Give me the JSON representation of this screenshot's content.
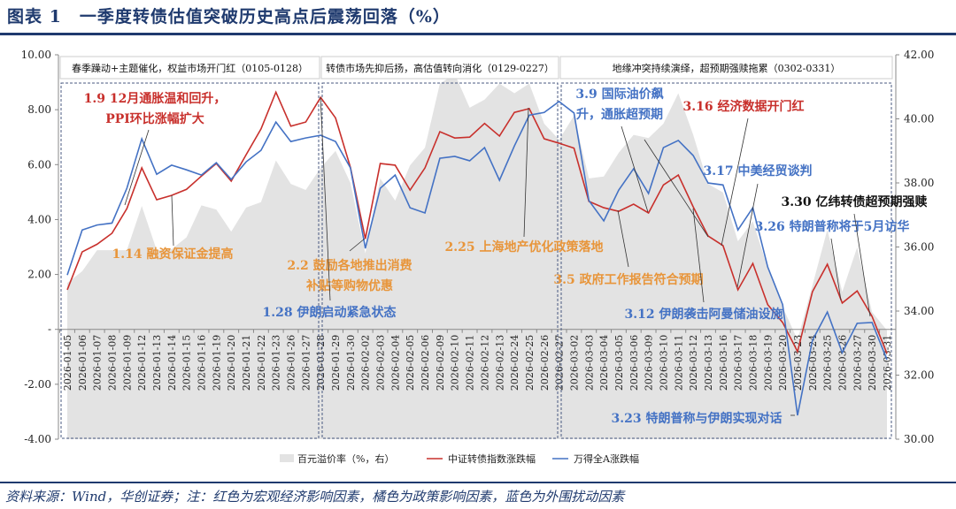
{
  "title": "图表 1　一季度转债估值突破历史高点后震荡回落（%）",
  "footer": "资料来源：Wind，华创证券；注：红色为宏观经济影响因素，橘色为政策影响因素，蓝色为外围扰动因素",
  "colors": {
    "red": "#c8302c",
    "blue": "#4472c4",
    "orange": "#e8953a",
    "area": "#e3e3e3",
    "navy": "#1f3a6e",
    "black": "#111111"
  },
  "chart_data": {
    "type": "line",
    "x": [
      "2026-01-05",
      "2026-01-06",
      "2026-01-07",
      "2026-01-08",
      "2026-01-09",
      "2026-01-12",
      "2026-01-13",
      "2026-01-14",
      "2026-01-15",
      "2026-01-16",
      "2026-01-19",
      "2026-01-20",
      "2026-01-21",
      "2026-01-22",
      "2026-01-23",
      "2026-01-26",
      "2026-01-27",
      "2026-01-28",
      "2026-01-29",
      "2026-01-30",
      "2026-02-02",
      "2026-02-03",
      "2026-02-04",
      "2026-02-05",
      "2026-02-06",
      "2026-02-09",
      "2026-02-10",
      "2026-02-11",
      "2026-02-12",
      "2026-02-13",
      "2026-02-24",
      "2026-02-25",
      "2026-02-26",
      "2026-02-27",
      "2026-03-02",
      "2026-03-03",
      "2026-03-04",
      "2026-03-05",
      "2026-03-06",
      "2026-03-09",
      "2026-03-10",
      "2026-03-11",
      "2026-03-12",
      "2026-03-13",
      "2026-03-16",
      "2026-03-17",
      "2026-03-18",
      "2026-03-19",
      "2026-03-20",
      "2026-03-23",
      "2026-03-24",
      "2026-03-25",
      "2026-03-26",
      "2026-03-27",
      "2026-03-30",
      "2026-03-31"
    ],
    "ylim_left": [
      -4,
      10
    ],
    "yticks_left": [
      "10.00",
      "8.00",
      "6.00",
      "4.00",
      "2.00",
      "-",
      "-2.00",
      "-4.00"
    ],
    "ylim_right": [
      30,
      42
    ],
    "yticks_right": [
      "42.00",
      "40.00",
      "38.00",
      "36.00",
      "34.00",
      "32.00",
      "30.00"
    ],
    "legend_position": "bottom",
    "series": [
      {
        "name": "百元溢价率（%，右）",
        "type": "area",
        "axis": "right",
        "color": "#e3e3e3",
        "values": [
          34.88,
          35.24,
          35.9,
          35.9,
          35.9,
          37.28,
          35.9,
          35.93,
          36.3,
          37.3,
          37.17,
          36.48,
          37.23,
          37.4,
          38.7,
          37.97,
          37.78,
          38.47,
          39.0,
          38.0,
          35.8,
          38.14,
          37.45,
          38.55,
          39.1,
          41.1,
          41.4,
          40.35,
          40.6,
          41.1,
          40.8,
          41.1,
          39.85,
          39.35,
          40.1,
          38.14,
          38.2,
          38.94,
          39.5,
          39.4,
          39.85,
          40.8,
          39.5,
          37.97,
          37.7,
          36.18,
          36.8,
          35.35,
          34.13,
          33.1,
          34.8,
          36.54,
          34.6,
          35.99,
          33.97,
          33.4
        ]
      },
      {
        "name": "中证转债指数涨跌幅",
        "type": "line",
        "axis": "left",
        "color": "#c8302c",
        "values": [
          1.44,
          2.82,
          3.1,
          3.5,
          4.4,
          5.88,
          4.72,
          4.88,
          5.1,
          5.58,
          6.04,
          5.4,
          6.36,
          7.3,
          8.64,
          7.4,
          7.55,
          8.45,
          7.7,
          5.9,
          3.3,
          6.04,
          5.98,
          5.07,
          5.88,
          7.2,
          6.97,
          7.0,
          7.5,
          7.04,
          7.9,
          8.04,
          6.94,
          6.78,
          6.6,
          4.66,
          4.43,
          4.3,
          4.56,
          4.24,
          5.26,
          5.62,
          4.46,
          3.4,
          3.05,
          1.44,
          2.4,
          0.9,
          0.25,
          -0.81,
          1.37,
          2.37,
          0.96,
          1.4,
          0.47,
          -0.88
        ]
      },
      {
        "name": "万得全A涨跌幅",
        "type": "line",
        "axis": "left",
        "color": "#4472c4",
        "values": [
          1.98,
          3.62,
          3.8,
          3.87,
          5.14,
          6.94,
          5.65,
          5.98,
          5.81,
          5.62,
          6.07,
          5.46,
          6.1,
          6.52,
          7.55,
          6.84,
          6.97,
          7.07,
          6.84,
          5.88,
          2.95,
          5.14,
          5.62,
          4.43,
          4.24,
          6.23,
          6.3,
          6.14,
          6.62,
          5.43,
          6.68,
          7.8,
          7.9,
          8.3,
          7.88,
          4.69,
          3.95,
          5.07,
          5.85,
          4.95,
          6.62,
          6.88,
          6.33,
          5.33,
          5.26,
          3.62,
          4.43,
          2.27,
          0.9,
          -3.13,
          -0.4,
          0.63,
          -0.85,
          0.22,
          0.25,
          -1.1
        ]
      }
    ],
    "phases": [
      {
        "label": "春季躁动+主题催化，权益市场开门红（0105-0128）"
      },
      {
        "label": "转债市场先抑后扬，高估值转向消化（0129-0227）"
      },
      {
        "label": "地缘冲突持续演绎，超预期强赎拖累（0302-0331）"
      }
    ],
    "annotations": [
      {
        "lines": [
          "1.9 12月通胀温和回升，",
          "PPI环比涨幅扩大"
        ],
        "color": "red"
      },
      {
        "lines": [
          "1.14 融资保证金提高"
        ],
        "color": "orange"
      },
      {
        "lines": [
          "2.2 鼓励各地推出消费",
          "补贴等购物优惠"
        ],
        "color": "orange"
      },
      {
        "lines": [
          "1.28 伊朗启动紧急状态"
        ],
        "color": "blue"
      },
      {
        "lines": [
          "2.25 上海地产优化政策落地"
        ],
        "color": "orange"
      },
      {
        "lines": [
          "3.9 国际油价飙",
          "升，通胀超预期"
        ],
        "color": "blue"
      },
      {
        "lines": [
          "3.5 政府工作报告符合预期"
        ],
        "color": "orange"
      },
      {
        "lines": [
          "3.16 经济数据开门红"
        ],
        "color": "red"
      },
      {
        "lines": [
          "3.17 中美经贸谈判"
        ],
        "color": "blue"
      },
      {
        "lines": [
          "3.12 伊朗袭击阿曼储油设施"
        ],
        "color": "blue"
      },
      {
        "lines": [
          "3.26 特朗普称将于5月访华"
        ],
        "color": "blue"
      },
      {
        "lines": [
          "3.30 亿纬转债超预期强赎"
        ],
        "color": "black"
      },
      {
        "lines": [
          "3.23 特朗普称与伊朗实现对话"
        ],
        "color": "blue"
      }
    ]
  }
}
